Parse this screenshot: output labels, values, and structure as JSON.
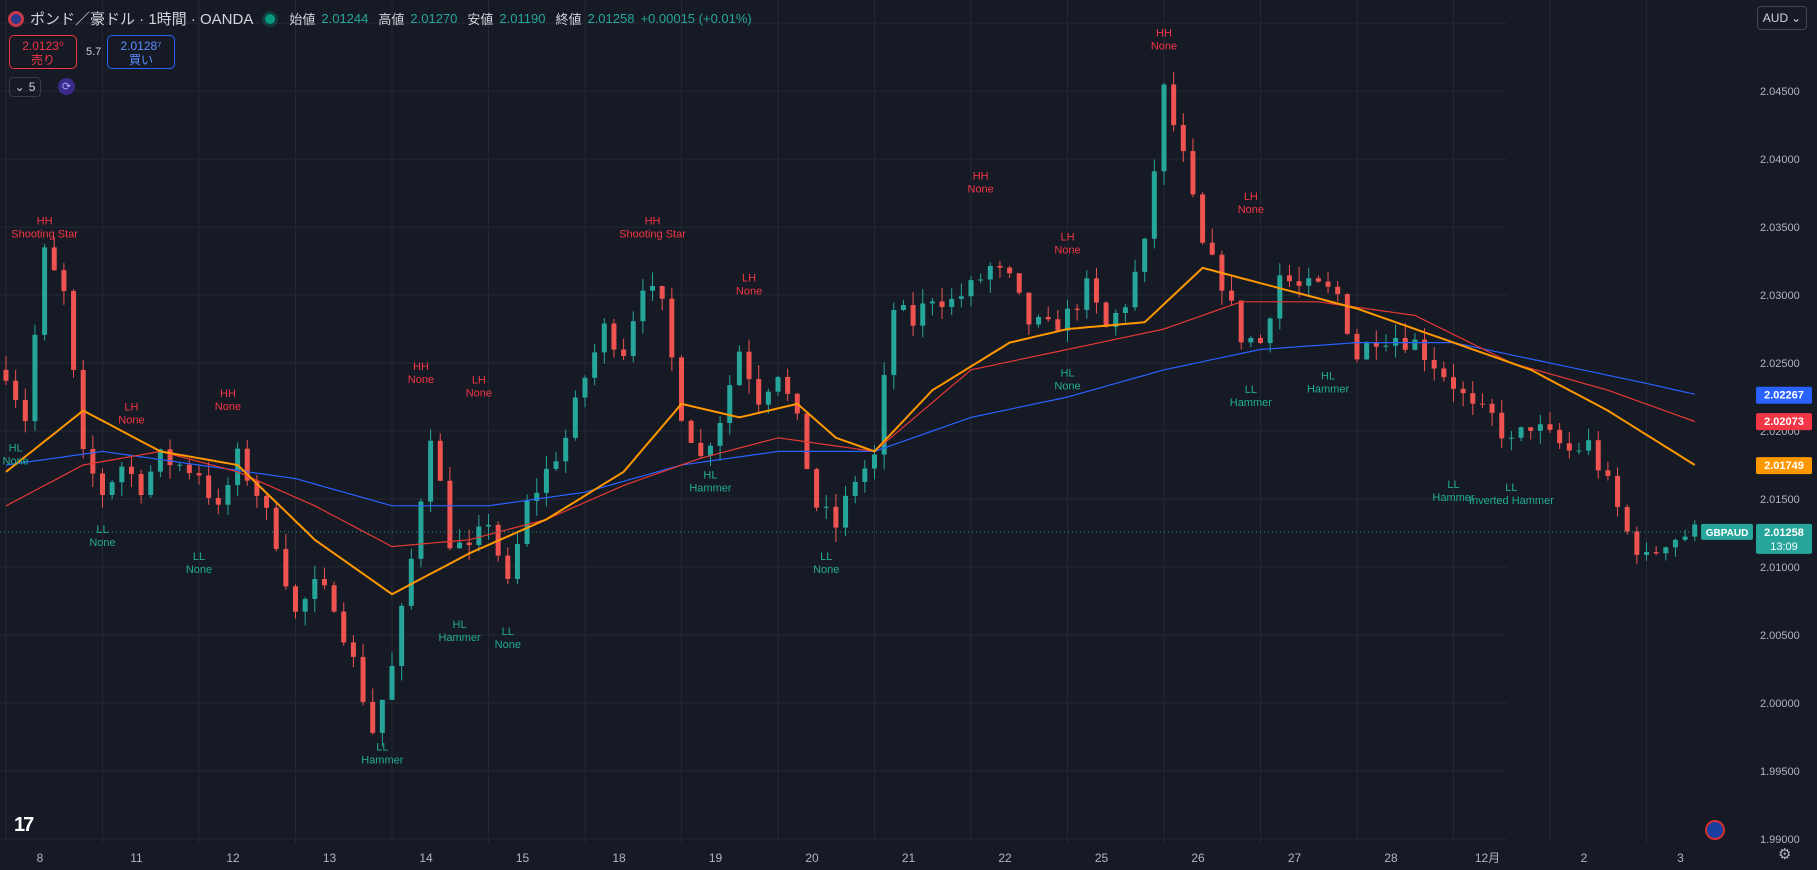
{
  "header": {
    "title": "ポンド／豪ドル · 1時間 · OANDA",
    "open_label": "始値",
    "open_value": "2.01244",
    "high_label": "高値",
    "high_value": "2.01270",
    "low_label": "安値",
    "low_value": "2.01190",
    "close_label": "終値",
    "close_value": "2.01258",
    "change": "+0.00015 (+0.01%)"
  },
  "trade": {
    "sell_price": "2.0123⁰",
    "sell_label": "売り",
    "buy_price": "2.0128⁷",
    "buy_label": "買い",
    "spread": "5.7"
  },
  "indicator_toggle": "5",
  "currency_button": "AUD",
  "colors": {
    "background": "#161a25",
    "grid": "#242833",
    "up": "#26a69a",
    "down": "#ef5350",
    "ma_orange": "#ff9800",
    "ma_red": "#e53935",
    "ma_blue": "#2962ff",
    "label_high": "#f23645",
    "label_low": "#22ab94"
  },
  "chart_data": {
    "type": "candlestick",
    "symbol_tag": "GBPAUD",
    "ylim": [
      1.9897,
      2.0517
    ],
    "y_ticks": [
      "2.05000",
      "2.04500",
      "2.04000",
      "2.03500",
      "2.03000",
      "2.02500",
      "2.02000",
      "2.01500",
      "2.01000",
      "2.00500",
      "2.00000",
      "1.99500",
      "1.99000"
    ],
    "y_tick_values": [
      2.05,
      2.045,
      2.04,
      2.035,
      2.03,
      2.025,
      2.02,
      2.015,
      2.01,
      2.005,
      2.0,
      1.995,
      1.99
    ],
    "x_ticks": [
      "8",
      "11",
      "12",
      "13",
      "14",
      "15",
      "18",
      "19",
      "20",
      "21",
      "22",
      "25",
      "26",
      "27",
      "28",
      "12月",
      "2",
      "3"
    ],
    "x_tick_index": [
      0,
      10,
      20,
      30,
      40,
      50,
      60,
      70,
      80,
      90,
      100,
      110,
      120,
      130,
      140,
      150,
      160,
      170
    ],
    "bar_count": 176,
    "last_price": "2.01258",
    "countdown": "13:09",
    "ma_labels": [
      {
        "value": "2.02267",
        "color": "#2962ff",
        "price": 2.02267
      },
      {
        "value": "2.02073",
        "color": "#f23645",
        "price": 2.02073
      },
      {
        "value": "2.01749",
        "color": "#ff9800",
        "price": 2.01749
      }
    ],
    "path_anchors": [
      [
        0,
        2.0245
      ],
      [
        2,
        2.021
      ],
      [
        4,
        2.033
      ],
      [
        6,
        2.03
      ],
      [
        8,
        2.018
      ],
      [
        10,
        2.0155
      ],
      [
        12,
        2.0175
      ],
      [
        14,
        2.016
      ],
      [
        16,
        2.018
      ],
      [
        18,
        2.0175
      ],
      [
        20,
        2.017
      ],
      [
        22,
        2.014
      ],
      [
        24,
        2.018
      ],
      [
        26,
        2.0155
      ],
      [
        28,
        2.012
      ],
      [
        30,
        2.0065
      ],
      [
        32,
        2.0085
      ],
      [
        34,
        2.0075
      ],
      [
        36,
        2.003
      ],
      [
        38,
        1.998
      ],
      [
        40,
        2.0025
      ],
      [
        42,
        2.0105
      ],
      [
        44,
        2.02
      ],
      [
        46,
        2.012
      ],
      [
        48,
        2.011
      ],
      [
        50,
        2.0135
      ],
      [
        52,
        2.0085
      ],
      [
        54,
        2.0145
      ],
      [
        56,
        2.017
      ],
      [
        58,
        2.0195
      ],
      [
        60,
        2.024
      ],
      [
        62,
        2.0275
      ],
      [
        64,
        2.026
      ],
      [
        66,
        2.031
      ],
      [
        68,
        2.029
      ],
      [
        70,
        2.0215
      ],
      [
        72,
        2.018
      ],
      [
        74,
        2.021
      ],
      [
        76,
        2.026
      ],
      [
        78,
        2.0225
      ],
      [
        80,
        2.0245
      ],
      [
        82,
        2.0205
      ],
      [
        84,
        2.0145
      ],
      [
        86,
        2.013
      ],
      [
        88,
        2.0165
      ],
      [
        90,
        2.018
      ],
      [
        92,
        2.029
      ],
      [
        94,
        2.028
      ],
      [
        96,
        2.03
      ],
      [
        98,
        2.0295
      ],
      [
        100,
        2.0305
      ],
      [
        102,
        2.032
      ],
      [
        104,
        2.031
      ],
      [
        106,
        2.028
      ],
      [
        108,
        2.0275
      ],
      [
        110,
        2.0285
      ],
      [
        112,
        2.0305
      ],
      [
        114,
        2.0275
      ],
      [
        116,
        2.0295
      ],
      [
        118,
        2.0335
      ],
      [
        120,
        2.045
      ],
      [
        122,
        2.04
      ],
      [
        124,
        2.0335
      ],
      [
        126,
        2.031
      ],
      [
        128,
        2.027
      ],
      [
        130,
        2.0265
      ],
      [
        132,
        2.0315
      ],
      [
        134,
        2.0305
      ],
      [
        136,
        2.0305
      ],
      [
        138,
        2.03
      ],
      [
        140,
        2.0255
      ],
      [
        142,
        2.027
      ],
      [
        144,
        2.027
      ],
      [
        146,
        2.0265
      ],
      [
        148,
        2.025
      ],
      [
        150,
        2.0235
      ],
      [
        152,
        2.0215
      ],
      [
        154,
        2.021
      ],
      [
        156,
        2.019
      ],
      [
        158,
        2.0205
      ],
      [
        160,
        2.0195
      ],
      [
        162,
        2.0185
      ],
      [
        164,
        2.019
      ],
      [
        166,
        2.016
      ],
      [
        168,
        2.0125
      ],
      [
        170,
        2.0105
      ],
      [
        172,
        2.012
      ],
      [
        175,
        2.01258
      ]
    ],
    "ma_orange_anchors": [
      [
        0,
        2.017
      ],
      [
        8,
        2.0215
      ],
      [
        16,
        2.0185
      ],
      [
        24,
        2.0175
      ],
      [
        32,
        2.012
      ],
      [
        40,
        2.008
      ],
      [
        48,
        2.011
      ],
      [
        56,
        2.0135
      ],
      [
        64,
        2.017
      ],
      [
        70,
        2.022
      ],
      [
        76,
        2.021
      ],
      [
        82,
        2.022
      ],
      [
        86,
        2.0195
      ],
      [
        90,
        2.0185
      ],
      [
        96,
        2.023
      ],
      [
        104,
        2.0265
      ],
      [
        110,
        2.0275
      ],
      [
        118,
        2.028
      ],
      [
        124,
        2.032
      ],
      [
        132,
        2.0305
      ],
      [
        140,
        2.029
      ],
      [
        150,
        2.0265
      ],
      [
        158,
        2.0245
      ],
      [
        166,
        2.0215
      ],
      [
        175,
        2.0175
      ]
    ],
    "ma_red_anchors": [
      [
        0,
        2.0145
      ],
      [
        8,
        2.0175
      ],
      [
        16,
        2.0185
      ],
      [
        24,
        2.017
      ],
      [
        32,
        2.0145
      ],
      [
        40,
        2.0115
      ],
      [
        48,
        2.012
      ],
      [
        56,
        2.0135
      ],
      [
        64,
        2.016
      ],
      [
        72,
        2.018
      ],
      [
        80,
        2.0195
      ],
      [
        90,
        2.0185
      ],
      [
        100,
        2.0245
      ],
      [
        110,
        2.026
      ],
      [
        120,
        2.0275
      ],
      [
        128,
        2.0295
      ],
      [
        136,
        2.0295
      ],
      [
        146,
        2.0285
      ],
      [
        156,
        2.025
      ],
      [
        166,
        2.023
      ],
      [
        175,
        2.0207
      ]
    ],
    "ma_blue_anchors": [
      [
        0,
        2.0175
      ],
      [
        10,
        2.0185
      ],
      [
        20,
        2.0175
      ],
      [
        30,
        2.0165
      ],
      [
        40,
        2.0145
      ],
      [
        50,
        2.0145
      ],
      [
        60,
        2.0155
      ],
      [
        70,
        2.0175
      ],
      [
        80,
        2.0185
      ],
      [
        90,
        2.0185
      ],
      [
        100,
        2.021
      ],
      [
        110,
        2.0225
      ],
      [
        120,
        2.0245
      ],
      [
        130,
        2.026
      ],
      [
        140,
        2.0265
      ],
      [
        150,
        2.0265
      ],
      [
        160,
        2.025
      ],
      [
        170,
        2.0235
      ],
      [
        175,
        2.0227
      ]
    ],
    "annotations": [
      {
        "i": 4,
        "price": 2.0352,
        "type": "high",
        "line1": "HH",
        "line2": "Shooting Star"
      },
      {
        "i": 13,
        "price": 2.0215,
        "type": "high",
        "line1": "LH",
        "line2": "None"
      },
      {
        "i": 23,
        "price": 2.0225,
        "type": "high",
        "line1": "HH",
        "line2": "None"
      },
      {
        "i": 43,
        "price": 2.0245,
        "type": "high",
        "line1": "HH",
        "line2": "None"
      },
      {
        "i": 49,
        "price": 2.0235,
        "type": "high",
        "line1": "LH",
        "line2": "None"
      },
      {
        "i": 67,
        "price": 2.0352,
        "type": "high",
        "line1": "HH",
        "line2": "Shooting Star"
      },
      {
        "i": 77,
        "price": 2.031,
        "type": "high",
        "line1": "LH",
        "line2": "None"
      },
      {
        "i": 101,
        "price": 2.0385,
        "type": "high",
        "line1": "HH",
        "line2": "None"
      },
      {
        "i": 110,
        "price": 2.034,
        "type": "high",
        "line1": "LH",
        "line2": "None"
      },
      {
        "i": 120,
        "price": 2.049,
        "type": "high",
        "line1": "HH",
        "line2": "None"
      },
      {
        "i": 129,
        "price": 2.037,
        "type": "high",
        "line1": "LH",
        "line2": "None"
      },
      {
        "i": 1,
        "price": 2.0185,
        "type": "low",
        "line1": "HL",
        "line2": "None"
      },
      {
        "i": 10,
        "price": 2.0125,
        "type": "low",
        "line1": "LL",
        "line2": "None"
      },
      {
        "i": 20,
        "price": 2.0105,
        "type": "low",
        "line1": "LL",
        "line2": "None"
      },
      {
        "i": 39,
        "price": 1.9965,
        "type": "low",
        "line1": "LL",
        "line2": "Hammer"
      },
      {
        "i": 47,
        "price": 2.0055,
        "type": "low",
        "line1": "HL",
        "line2": "Hammer"
      },
      {
        "i": 52,
        "price": 2.005,
        "type": "low",
        "line1": "LL",
        "line2": "None"
      },
      {
        "i": 73,
        "price": 2.0165,
        "type": "low",
        "line1": "HL",
        "line2": "Hammer"
      },
      {
        "i": 85,
        "price": 2.0105,
        "type": "low",
        "line1": "LL",
        "line2": "None"
      },
      {
        "i": 110,
        "price": 2.024,
        "type": "low",
        "line1": "HL",
        "line2": "None"
      },
      {
        "i": 129,
        "price": 2.0228,
        "type": "low",
        "line1": "LL",
        "line2": "Hammer"
      },
      {
        "i": 137,
        "price": 2.0238,
        "type": "low",
        "line1": "HL",
        "line2": "Hammer"
      },
      {
        "i": 150,
        "price": 2.0158,
        "type": "low",
        "line1": "LL",
        "line2": "Hammer"
      },
      {
        "i": 156,
        "price": 2.0156,
        "type": "low",
        "line1": "LL",
        "line2": "Inverted Hammer"
      }
    ]
  }
}
